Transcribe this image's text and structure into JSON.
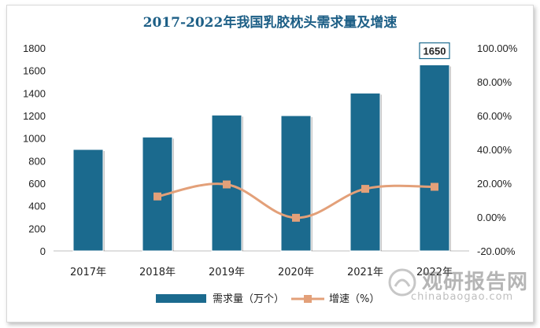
{
  "chart_data": {
    "type": "bar+line",
    "title": "2017-2022年我国乳胶枕头需求量及增速",
    "categories": [
      "2017年",
      "2018年",
      "2019年",
      "2020年",
      "2021年",
      "2022年"
    ],
    "series": [
      {
        "name": "需求量（万个）",
        "type": "bar",
        "axis": "left",
        "color": "#1b6a8e",
        "values": [
          900,
          1010,
          1205,
          1200,
          1400,
          1650
        ]
      },
      {
        "name": "增速（%）",
        "type": "line",
        "axis": "right",
        "color": "#e3a079",
        "values": [
          null,
          12.2,
          19.3,
          -0.4,
          16.7,
          17.9
        ]
      }
    ],
    "left_axis": {
      "min": 0,
      "max": 1800,
      "step": 200,
      "ticks": [
        "0",
        "200",
        "400",
        "600",
        "800",
        "1000",
        "1200",
        "1400",
        "1600",
        "1800"
      ]
    },
    "right_axis": {
      "min": -20,
      "max": 100,
      "step": 20,
      "ticks": [
        "-20.00%",
        "0.00%",
        "20.00%",
        "40.00%",
        "60.00%",
        "80.00%",
        "100.00%"
      ]
    },
    "annotation": {
      "category_index": 5,
      "text": "1650"
    },
    "legend_position": "bottom",
    "grid": false
  },
  "watermark": {
    "cn": "观研报告网",
    "en": "chinabaogao.com"
  }
}
